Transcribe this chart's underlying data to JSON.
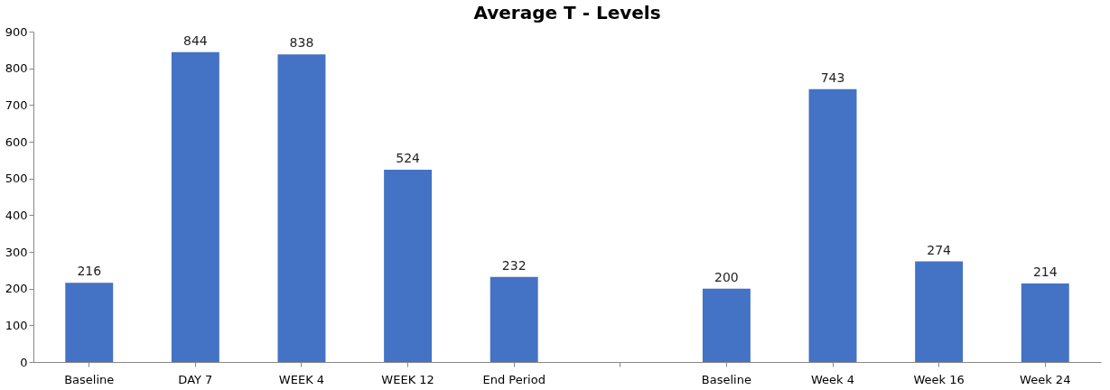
{
  "chart_data": {
    "type": "bar",
    "title": "Average T - Levels",
    "categories": [
      "Baseline",
      "DAY 7",
      "WEEK 4",
      "WEEK 12",
      "End Period",
      null,
      "Baseline",
      "Week 4",
      "Week 16",
      "Week 24"
    ],
    "values": [
      216,
      844,
      838,
      524,
      232,
      null,
      200,
      743,
      274,
      214
    ],
    "color": "#4472c4",
    "ylim": [
      0,
      900
    ],
    "yticks": [
      0,
      100,
      200,
      300,
      400,
      500,
      600,
      700,
      800,
      900
    ],
    "grid": false,
    "data_labels": true
  }
}
